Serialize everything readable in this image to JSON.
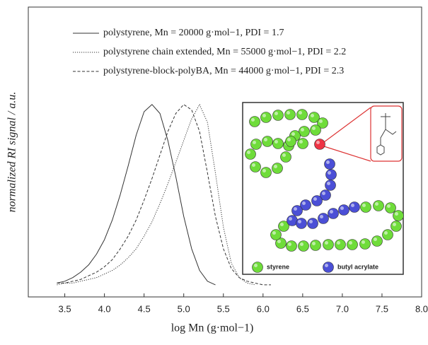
{
  "chart_data": {
    "type": "line",
    "xlabel": "log Mn (g·mol−1)",
    "ylabel": "normalized RI signal / a.u.",
    "x": [
      3.4,
      3.5,
      3.6,
      3.7,
      3.8,
      3.9,
      4.0,
      4.1,
      4.2,
      4.3,
      4.4,
      4.5,
      4.6,
      4.7,
      4.8,
      4.9,
      5.0,
      5.1,
      5.2,
      5.3,
      5.4,
      5.5,
      5.6,
      5.7,
      5.8,
      5.9,
      6.0,
      6.1
    ],
    "series": [
      {
        "name": "polystyrene, Mn = 20000 g·mol−1, PDI = 1.7",
        "color": "#333333",
        "dash": "solid",
        "values": [
          0.01,
          0.02,
          0.04,
          0.07,
          0.11,
          0.17,
          0.25,
          0.36,
          0.5,
          0.66,
          0.83,
          0.96,
          1.0,
          0.95,
          0.8,
          0.6,
          0.38,
          0.2,
          0.08,
          0.02,
          0.0,
          null,
          null,
          null,
          null,
          null,
          null,
          null
        ]
      },
      {
        "name": "polystyrene chain extended, Mn = 55000 g·mol−1, PDI = 2.2",
        "color": "#333333",
        "dash": "dotted",
        "values": [
          0.0,
          0.01,
          0.01,
          0.02,
          0.03,
          0.04,
          0.06,
          0.08,
          0.11,
          0.15,
          0.2,
          0.27,
          0.35,
          0.45,
          0.56,
          0.68,
          0.8,
          0.92,
          1.0,
          0.9,
          0.62,
          0.32,
          0.12,
          0.04,
          0.01,
          0.0,
          null,
          null
        ]
      },
      {
        "name": "polystyrene-block-polyBA, Mn = 44000 g·mol−1, PDI = 2.3",
        "color": "#333333",
        "dash": "dashed",
        "values": [
          0.01,
          0.01,
          0.02,
          0.03,
          0.05,
          0.07,
          0.1,
          0.14,
          0.2,
          0.27,
          0.36,
          0.47,
          0.59,
          0.72,
          0.85,
          0.95,
          1.0,
          0.97,
          0.85,
          0.62,
          0.38,
          0.2,
          0.09,
          0.04,
          0.02,
          0.01,
          0.0,
          0.0
        ]
      }
    ],
    "xlim": [
      3.04,
      8.0
    ],
    "xticks": [
      3.5,
      {
        "value": 4,
        "label": "4.0"
      },
      4.5,
      {
        "value": 5,
        "label": "5.0"
      },
      5.5,
      {
        "value": 6,
        "label": "6.0"
      },
      6.5,
      {
        "value": 7,
        "label": "7.0"
      },
      7.5,
      {
        "value": 8,
        "label": "8.0"
      }
    ],
    "ylim": [
      -0.067,
      1.54
    ],
    "grid": false
  },
  "inset": {
    "legend": [
      "styrene",
      "butyl acrylate"
    ]
  }
}
